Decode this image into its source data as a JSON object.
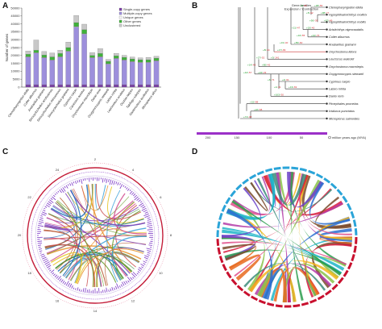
{
  "panels": {
    "a": "A",
    "b": "B",
    "c": "C",
    "d": "D"
  },
  "chart_data": [
    {
      "type": "bar",
      "stacked": true,
      "ylabel": "Number of genes",
      "ylim": [
        0,
        50000
      ],
      "yticks": [
        "0",
        "5000",
        "10000",
        "15000",
        "20000",
        "25000",
        "30000",
        "35000",
        "40000",
        "45000",
        "50000"
      ],
      "legend": [
        "Single-copy genes",
        "Multiple-copy genes",
        "Unique genes",
        "Other genes",
        "Unclustered"
      ],
      "legend_position": "top-right",
      "colors": [
        "#7b3fa6",
        "#9d8fdc",
        "#f3f3f3",
        "#3fb13a",
        "#c8c8c8"
      ],
      "categories": [
        "Ctenopharyngodon idella",
        "Culter alburnus",
        "Anabarilius grahami",
        "Sinocyclocheilus anshuiensis",
        "Sinocyclocheilus rhinocerous",
        "Sinocyclocheilus grahami",
        "Cyprinus carpio",
        "Carassius auratus",
        "Onychostoma macrolepis",
        "Danio rerio",
        "Oxygymnocypris stewartii",
        "Labeo rohita",
        "Lepisosteus oculatus",
        "Oryzias latipes",
        "Takifugu rubripes",
        "Gasterosteus aculeatus",
        "Monopterus albus"
      ],
      "series": [
        {
          "name": "Single-copy genes",
          "values": [
            1500,
            1500,
            1500,
            1500,
            1500,
            1500,
            1500,
            1500,
            1500,
            1500,
            1500,
            1500,
            1500,
            1500,
            1500,
            1500,
            1500
          ]
        },
        {
          "name": "Multiple-copy genes",
          "values": [
            17500,
            20000,
            17000,
            15500,
            17500,
            21000,
            36500,
            32000,
            17000,
            17500,
            13000,
            16500,
            15500,
            14500,
            14000,
            14000,
            15000
          ]
        },
        {
          "name": "Unique genes",
          "values": [
            300,
            300,
            300,
            300,
            300,
            300,
            300,
            300,
            300,
            300,
            300,
            300,
            300,
            300,
            300,
            300,
            300
          ]
        },
        {
          "name": "Other genes",
          "values": [
            1500,
            1500,
            1500,
            1800,
            2000,
            2200,
            2500,
            2500,
            1200,
            2000,
            1500,
            1500,
            1500,
            1500,
            1500,
            1500,
            1500
          ]
        },
        {
          "name": "Unclustered",
          "values": [
            2000,
            6500,
            2200,
            2500,
            2000,
            3500,
            4500,
            3500,
            1800,
            3000,
            1200,
            1500,
            1300,
            1200,
            1200,
            1500,
            1200
          ]
        }
      ]
    },
    {
      "type": "tree",
      "legend": [
        "Gene families",
        "Expansion / Contraction"
      ],
      "xlabel": "million years ago (MYA)",
      "xticks": [
        "200",
        "150",
        "100",
        "50"
      ],
      "species": [
        "Ctenopharyngodon idella",
        "Hypophthalmichthys molitrix",
        "Hypophthalmichthys nobilis",
        "Aristichthys nigrocaudalis",
        "Culter alburnus",
        "Anabarilius grahami",
        "Onychostoma lidons",
        "Leuciscus waleckii",
        "Onychostoma macrolepis",
        "Oxygymnocypris stewartii",
        "Cyprinus carpio",
        "Labeo rohita",
        "Danio rerio",
        "Pimephales promelas",
        "Ictalurus punctatus",
        "Micropterus salmoides"
      ],
      "branch_labels": [
        "+38/-56",
        "+98/-77",
        "+67/-49",
        "+19/-40",
        "+44/-76",
        "+55/-60",
        "+17/-99",
        "+3/-141",
        "+80/-42",
        "+24/-33",
        "+4/-61",
        "+13/-69",
        "+163/-30",
        "+15/-88",
        "+22/-58",
        "+71/-48",
        "+9/-35",
        "+5/-62",
        "+56/-39",
        "+21/-47",
        "+10/-55",
        "+31/-40",
        "+8/-64",
        "+27/-52",
        "+14/-43",
        "+42/-57",
        "+6/-71",
        "+1/-31"
      ]
    },
    {
      "type": "circos",
      "outer_labels": [
        "2",
        "4",
        "6",
        "8",
        "10",
        "12",
        "14",
        "16",
        "18",
        "20",
        "22",
        "24"
      ]
    },
    {
      "type": "chord",
      "segments": 50
    }
  ]
}
